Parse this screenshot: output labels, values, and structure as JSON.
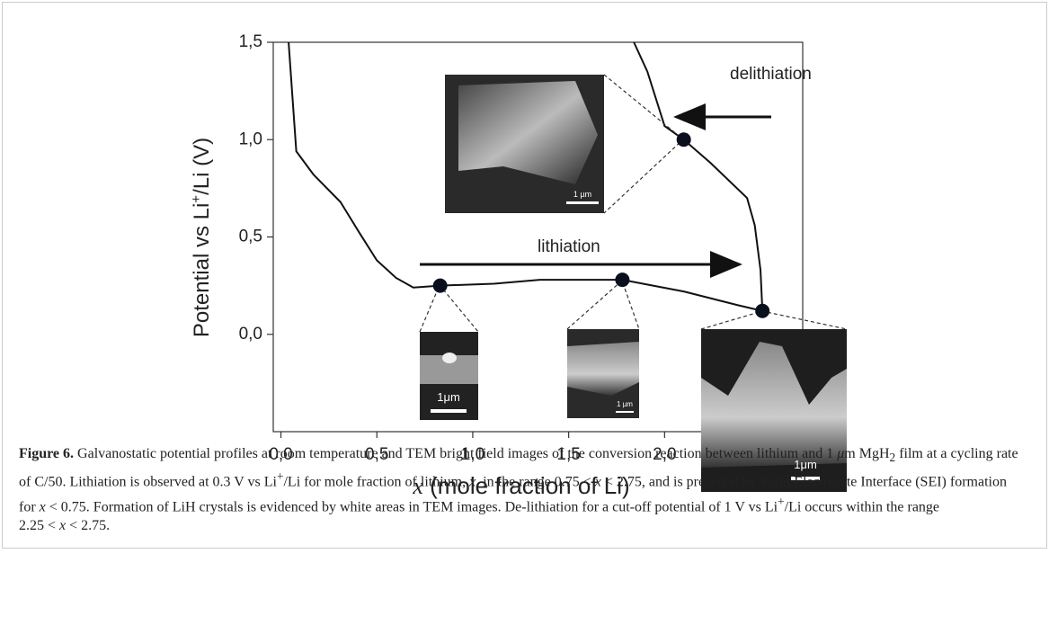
{
  "chart_data": {
    "type": "line",
    "ylabel": [
      "Potential vs Li",
      "+",
      "/Li (V)"
    ],
    "xlabel": [
      "x",
      " (mole fraction of Li)"
    ],
    "xlim": [
      -0.04,
      2.72
    ],
    "ylim": [
      -0.5,
      1.5
    ],
    "xticks": [
      {
        "value": 0,
        "label": "0,0"
      },
      {
        "value": 0.5,
        "label": "0,5"
      },
      {
        "value": 1,
        "label": "1,0"
      },
      {
        "value": 1.5,
        "label": "1,5"
      },
      {
        "value": 2,
        "label": "2,0"
      }
    ],
    "yticks": [
      {
        "value": 0,
        "label": "0,0"
      },
      {
        "value": 0.5,
        "label": "0,5"
      },
      {
        "value": 1,
        "label": "1,0"
      },
      {
        "value": 1.5,
        "label": "1,5"
      }
    ],
    "series": [
      {
        "color": "#111111",
        "x": [
          0.04,
          0.08,
          0.17,
          0.31,
          0.41,
          0.5,
          0.6,
          0.69,
          0.83,
          1.11,
          1.35,
          1.78,
          2.1,
          2.38,
          2.51
        ],
        "values": [
          1.5,
          0.94,
          0.82,
          0.68,
          0.52,
          0.38,
          0.29,
          0.24,
          0.25,
          0.26,
          0.28,
          0.28,
          0.22,
          0.15,
          0.12
        ]
      },
      {
        "color": "#111111",
        "x": [
          2.51,
          2.5,
          2.47,
          2.43,
          2.24,
          2.1,
          2.0,
          1.91,
          1.84
        ],
        "values": [
          0.12,
          0.33,
          0.56,
          0.7,
          0.88,
          1.0,
          1.07,
          1.35,
          1.5
        ]
      }
    ],
    "points": {
      "color": "#0a0f1e",
      "x": [
        0.83,
        1.78,
        2.1,
        2.51
      ],
      "values": [
        0.25,
        0.28,
        1.0,
        0.12
      ]
    },
    "annotations": [
      "lithiation",
      "delithiation"
    ],
    "insets": [
      "1 µm",
      "1μm",
      "1 µm",
      "1μm"
    ]
  },
  "caption": [
    "Figure 6.",
    " Galvanostatic potential profiles at room temperature and TEM bright field images of the conversion reaction between lithium and 1 ",
    "μ",
    "m MgH",
    "2",
    " film at a cycling rate of C/50. Lithiation is observed at 0.3 V vs Li",
    "+",
    "/Li for mole fraction of lithium, ",
    "x",
    ", in the range 0.75 < ",
    "x",
    " < 2.75, and is preceded by Solid Electrolyte Interface (SEI) formation for ",
    "x",
    " < 0.75. Formation of LiH crystals is evidenced by white areas in TEM images. De-lithiation for a cut-off potential of 1 V vs Li",
    "+",
    "/Li occurs within the range ",
    "2.25 < ",
    "x",
    " < 2.75."
  ]
}
